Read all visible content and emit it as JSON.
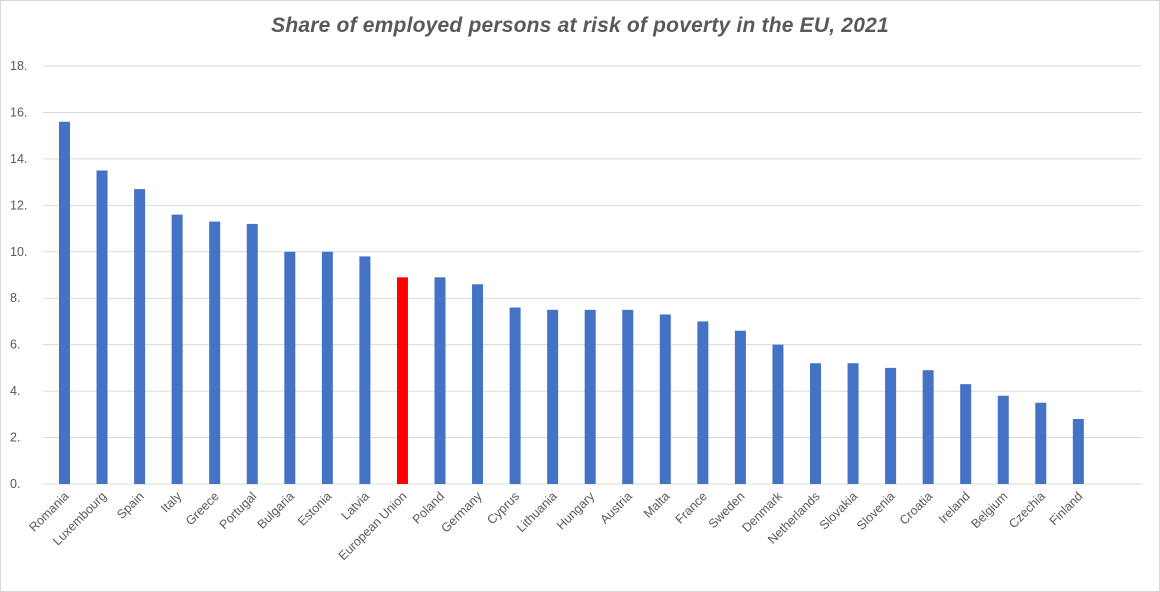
{
  "chart_data": {
    "type": "bar",
    "title": "Share of employed persons at risk of poverty in the EU, 2021",
    "xlabel": "",
    "ylabel": "",
    "ylim": [
      0,
      18
    ],
    "yticks": [
      0,
      2,
      4,
      6,
      8,
      10,
      12,
      14,
      16,
      18
    ],
    "ytick_labels": [
      "0.",
      "2.",
      "4.",
      "6.",
      "8.",
      "10.",
      "12.",
      "14.",
      "16.",
      "18."
    ],
    "grid": true,
    "categories": [
      "Romania",
      "Luxembourg",
      "Spain",
      "Italy",
      "Greece",
      "Portugal",
      "Bulgaria",
      "Estonia",
      "Latvia",
      "European Union",
      "Poland",
      "Germany",
      "Cyprus",
      "Lithuania",
      "Hungary",
      "Austria",
      "Malta",
      "France",
      "Sweden",
      "Denmark",
      "Netherlands",
      "Slovakia",
      "Slovenia",
      "Croatia",
      "Ireland",
      "Belgium",
      "Czechia",
      "Finland"
    ],
    "values": [
      15.6,
      13.5,
      12.7,
      11.6,
      11.3,
      11.2,
      10.0,
      10.0,
      9.8,
      8.9,
      8.9,
      8.6,
      7.6,
      7.5,
      7.5,
      7.5,
      7.3,
      7.0,
      6.6,
      6.0,
      5.2,
      5.2,
      5.0,
      4.9,
      4.3,
      3.8,
      3.5,
      2.8
    ],
    "highlight_category": "European Union",
    "colors": {
      "bar": "#4472c4",
      "highlight": "#ff0000",
      "grid": "#d9d9d9",
      "text": "#595959"
    }
  }
}
